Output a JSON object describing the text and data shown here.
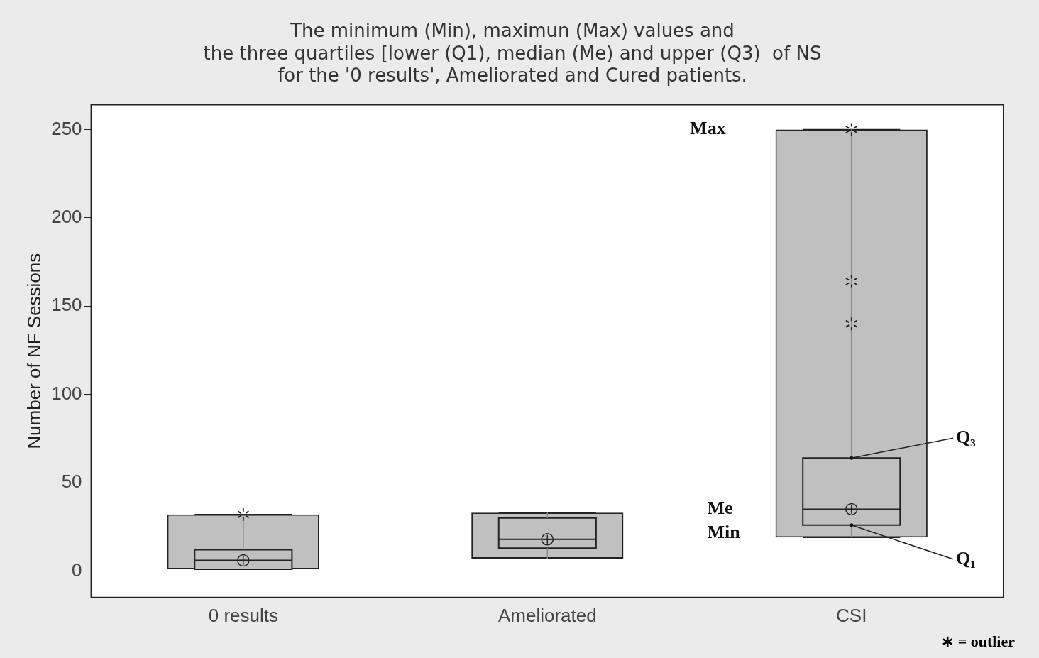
{
  "chart_data": {
    "type": "box",
    "title": "The minimum (Min), maximun (Max) values and\nthe three quartiles [lower (Q1), median (Me) and upper (Q3)  of NS\nfor the '0 results', Ameliorated and Cured patients.",
    "ylabel": "Number of NF Sessions",
    "categories": [
      "0 results",
      "Ameliorated",
      "CSI"
    ],
    "series": [
      {
        "type": "bar",
        "color": "#c0c0c0",
        "base": [
          1,
          7,
          19
        ],
        "values": [
          31,
          26,
          231
        ]
      },
      {
        "type": "box",
        "color": "#c0c0c0",
        "boxes": [
          {
            "low": 1,
            "q1": 1,
            "median": 6,
            "q3": 12,
            "high": 32,
            "mean": 6,
            "outliers": [
              32
            ]
          },
          {
            "low": 7,
            "q1": 13,
            "median": 18,
            "q3": 30,
            "high": 33,
            "mean": 18
          },
          {
            "low": 19,
            "q1": 26,
            "median": 35,
            "q3": 64,
            "high": 250,
            "mean": 35,
            "outliers": [
              250,
              164,
              140
            ]
          }
        ]
      }
    ],
    "ylim": [
      -15,
      264
    ],
    "yticks": [
      0,
      50,
      100,
      150,
      200,
      250
    ],
    "grid": false,
    "legend": false,
    "annotations": [
      "Max",
      "Me",
      "Min",
      {
        "text": "Q₃",
        "x": "CSI",
        "y": 64
      },
      {
        "text": "Q₁",
        "x": "CSI",
        "y": 26
      },
      "∗ = outlier"
    ]
  }
}
